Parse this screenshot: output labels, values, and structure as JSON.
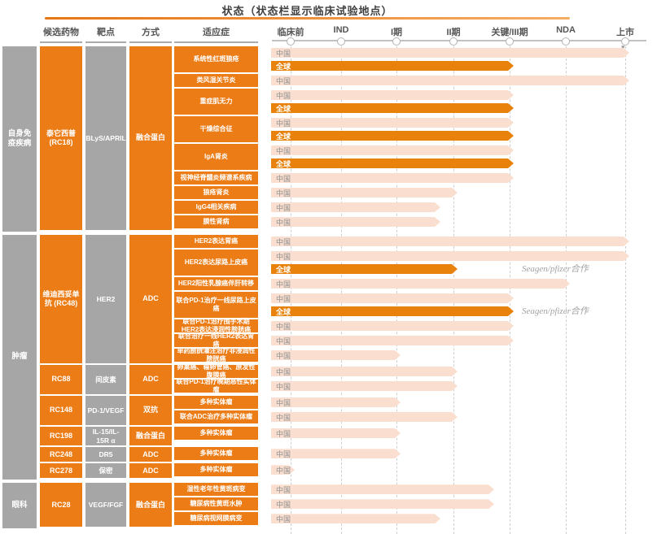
{
  "chart_data": {
    "type": "gantt",
    "title": "状态（状态栏显示临床试验地点）",
    "columns": {
      "drug": "候选药物",
      "target": "靶点",
      "modality": "方式",
      "indication": "适应症"
    },
    "phases": [
      "临床前",
      "IND",
      "I期",
      "II期",
      "关键/III期",
      "NDA",
      "上市"
    ],
    "phase_scale_note": "bar phase value: 0=临床前 1=IND 2=I期 3=II期 4=关键/III期 5=NDA 6=上市",
    "colors": {
      "brand_orange": "#ec7c16",
      "dark_bar": "#e8820b",
      "light_bar": "#fadfd0",
      "gray_cell": "#a6a6a6"
    },
    "groups": [
      {
        "category": "自身免疫疾病",
        "drugs": [
          {
            "name": "泰它西普 (RC18)",
            "target": "BLyS/APRIL",
            "modality": "融合蛋白",
            "indications": [
              {
                "label": "系统性红斑狼疮",
                "bars": [
                  {
                    "region": "中国",
                    "phase": 6,
                    "style": "light"
                  },
                  {
                    "region": "全球",
                    "phase": 4,
                    "style": "dark"
                  }
                ]
              },
              {
                "label": "类风湿关节炎",
                "bars": [
                  {
                    "region": "中国",
                    "phase": 6,
                    "style": "light"
                  }
                ]
              },
              {
                "label": "重症肌无力",
                "bars": [
                  {
                    "region": "中国",
                    "phase": 4,
                    "style": "light"
                  },
                  {
                    "region": "全球",
                    "phase": 4,
                    "style": "dark"
                  }
                ]
              },
              {
                "label": "干燥综合征",
                "bars": [
                  {
                    "region": "中国",
                    "phase": 4,
                    "style": "light"
                  },
                  {
                    "region": "全球",
                    "phase": 4,
                    "style": "dark"
                  }
                ]
              },
              {
                "label": "IgA肾炎",
                "bars": [
                  {
                    "region": "中国",
                    "phase": 4,
                    "style": "light"
                  },
                  {
                    "region": "全球",
                    "phase": 4,
                    "style": "dark"
                  }
                ]
              },
              {
                "label": "视神经脊髓炎频谱系疾病",
                "bars": [
                  {
                    "region": "中国",
                    "phase": 4,
                    "style": "light"
                  }
                ]
              },
              {
                "label": "狼疮肾炎",
                "bars": [
                  {
                    "region": "中国",
                    "phase": 3,
                    "style": "light"
                  }
                ]
              },
              {
                "label": "IgG4相关疾病",
                "bars": [
                  {
                    "region": "中国",
                    "phase": 2.7,
                    "style": "light"
                  }
                ]
              },
              {
                "label": "膜性肾病",
                "bars": [
                  {
                    "region": "中国",
                    "phase": 2.7,
                    "style": "light"
                  }
                ]
              }
            ]
          }
        ]
      },
      {
        "category": "肿瘤",
        "drugs": [
          {
            "name": "维迪西妥单抗 (RC48)",
            "target": "HER2",
            "modality": "ADC",
            "indications": [
              {
                "label": "HER2表达胃癌",
                "bars": [
                  {
                    "region": "中国",
                    "phase": 6,
                    "style": "light"
                  }
                ]
              },
              {
                "label": "HER2表达尿路上皮癌",
                "bars": [
                  {
                    "region": "中国",
                    "phase": 6,
                    "style": "light"
                  },
                  {
                    "region": "全球",
                    "phase": 3,
                    "style": "dark",
                    "annotation": "Seagen/pfizer合作"
                  }
                ]
              },
              {
                "label": "HER2阳性乳腺癌伴肝转移",
                "bars": [
                  {
                    "region": "中国",
                    "phase": 5,
                    "style": "light"
                  }
                ]
              },
              {
                "label": "联合PD-1治疗一线尿路上皮癌",
                "bars": [
                  {
                    "region": "中国",
                    "phase": 4,
                    "style": "light"
                  },
                  {
                    "region": "全球",
                    "phase": 4,
                    "style": "dark",
                    "annotation": "Seagen/pfizer合作"
                  }
                ]
              },
              {
                "label": "联合PD-1治疗围手术期HER2表达浸润性膀胱癌",
                "bars": [
                  {
                    "region": "中国",
                    "phase": 4,
                    "style": "light"
                  }
                ]
              },
              {
                "label": "联合治疗一线HER2表达胃癌",
                "bars": [
                  {
                    "region": "中国",
                    "phase": 4,
                    "style": "light"
                  }
                ]
              },
              {
                "label": "单药膀胱灌注治疗非浸润性膀胱癌",
                "bars": [
                  {
                    "region": "中国",
                    "phase": 2,
                    "style": "light"
                  }
                ]
              }
            ]
          },
          {
            "name": "RC88",
            "target": "间皮素",
            "modality": "ADC",
            "indications": [
              {
                "label": "卵巢癌、输卵管癌、原发性腹膜癌",
                "bars": [
                  {
                    "region": "中国",
                    "phase": 3,
                    "style": "light"
                  }
                ]
              },
              {
                "label": "联合PD-1治疗晚期恶性实体瘤",
                "bars": [
                  {
                    "region": "中国",
                    "phase": 3,
                    "style": "light"
                  }
                ]
              }
            ]
          },
          {
            "name": "RC148",
            "target": "PD-1/VEGF",
            "modality": "双抗",
            "indications": [
              {
                "label": "多种实体瘤",
                "bars": [
                  {
                    "region": "中国",
                    "phase": 2,
                    "style": "light"
                  }
                ]
              },
              {
                "label": "联合ADC治疗多种实体瘤",
                "bars": [
                  {
                    "region": "中国",
                    "phase": 3,
                    "style": "light"
                  }
                ]
              }
            ]
          },
          {
            "name": "RC198",
            "target": "IL-15/IL-15R α",
            "modality": "融合蛋白",
            "indications": [
              {
                "label": "多种实体瘤",
                "bars": [
                  {
                    "region": "中国",
                    "phase": 2,
                    "style": "light"
                  }
                ]
              }
            ]
          },
          {
            "name": "RC248",
            "target": "DR5",
            "modality": "ADC",
            "indications": [
              {
                "label": "多种实体瘤",
                "bars": [
                  {
                    "region": "中国",
                    "phase": 2,
                    "style": "light"
                  }
                ]
              }
            ]
          },
          {
            "name": "RC278",
            "target": "保密",
            "modality": "ADC",
            "indications": [
              {
                "label": "多种实体瘤",
                "bars": [
                  {
                    "region": "中国",
                    "phase": 0,
                    "style": "light"
                  }
                ]
              }
            ]
          }
        ]
      },
      {
        "category": "眼科",
        "drugs": [
          {
            "name": "RC28",
            "target": "VEGF/FGF",
            "modality": "融合蛋白",
            "indications": [
              {
                "label": "湿性老年性黄斑病变",
                "bars": [
                  {
                    "region": "中国",
                    "phase": 3.65,
                    "style": "light"
                  }
                ]
              },
              {
                "label": "糖尿病性黄斑水肿",
                "bars": [
                  {
                    "region": "中国",
                    "phase": 3.65,
                    "style": "light"
                  }
                ]
              },
              {
                "label": "糖尿病视网膜病变",
                "bars": [
                  {
                    "region": "中国",
                    "phase": 2.7,
                    "style": "light"
                  }
                ]
              }
            ]
          }
        ]
      }
    ]
  }
}
